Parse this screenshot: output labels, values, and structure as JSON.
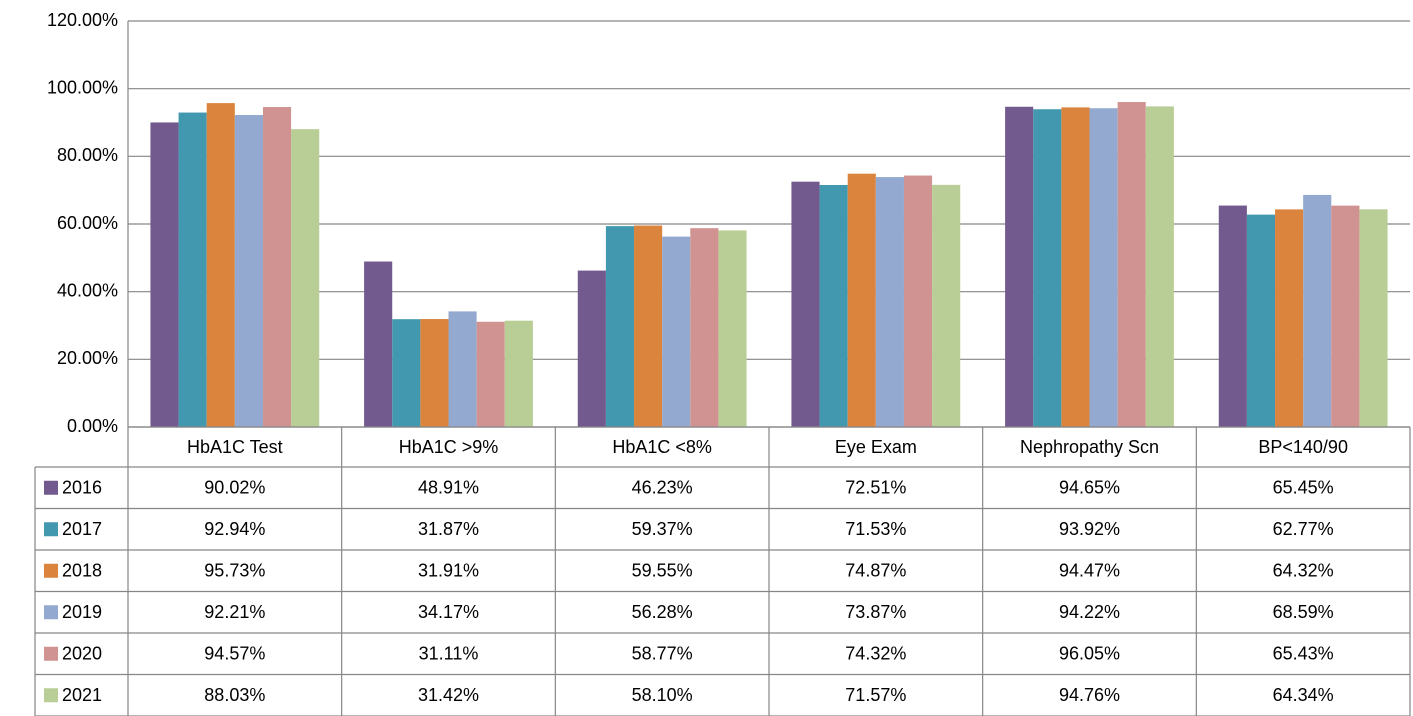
{
  "chart_data": {
    "type": "bar",
    "categories": [
      "HbA1C Test",
      "HbA1C >9%",
      "HbA1C <8%",
      "Eye Exam",
      "Nephropathy Scn",
      "BP<140/90"
    ],
    "series": [
      {
        "name": "2016",
        "color": "#735a8e",
        "values": [
          90.02,
          48.91,
          46.23,
          72.51,
          94.65,
          65.45
        ],
        "value_labels": [
          "90.02%",
          "48.91%",
          "46.23%",
          "72.51%",
          "94.65%",
          "65.45%"
        ]
      },
      {
        "name": "2017",
        "color": "#4198af",
        "values": [
          92.94,
          31.87,
          59.37,
          71.53,
          93.92,
          62.77
        ],
        "value_labels": [
          "92.94%",
          "31.87%",
          "59.37%",
          "71.53%",
          "93.92%",
          "62.77%"
        ]
      },
      {
        "name": "2018",
        "color": "#db843d",
        "values": [
          95.73,
          31.91,
          59.55,
          74.87,
          94.47,
          64.32
        ],
        "value_labels": [
          "95.73%",
          "31.91%",
          "59.55%",
          "74.87%",
          "94.47%",
          "64.32%"
        ]
      },
      {
        "name": "2019",
        "color": "#93a9cf",
        "values": [
          92.21,
          34.17,
          56.28,
          73.87,
          94.22,
          68.59
        ],
        "value_labels": [
          "92.21%",
          "34.17%",
          "56.28%",
          "73.87%",
          "94.22%",
          "68.59%"
        ]
      },
      {
        "name": "2020",
        "color": "#d19392",
        "values": [
          94.57,
          31.11,
          58.77,
          74.32,
          96.05,
          65.43
        ],
        "value_labels": [
          "94.57%",
          "31.11%",
          "58.77%",
          "74.32%",
          "96.05%",
          "65.43%"
        ]
      },
      {
        "name": "2021",
        "color": "#b9cd96",
        "values": [
          88.03,
          31.42,
          58.1,
          71.57,
          94.76,
          64.34
        ],
        "value_labels": [
          "88.03%",
          "31.42%",
          "58.10%",
          "71.57%",
          "94.76%",
          "64.34%"
        ]
      }
    ],
    "ylim": [
      0,
      120
    ],
    "yticks": [
      {
        "value": 0,
        "label": "0.00%"
      },
      {
        "value": 20,
        "label": "20.00%"
      },
      {
        "value": 40,
        "label": "40.00%"
      },
      {
        "value": 60,
        "label": "60.00%"
      },
      {
        "value": 80,
        "label": "80.00%"
      },
      {
        "value": 100,
        "label": "100.00%"
      },
      {
        "value": 120,
        "label": "120.00%"
      }
    ],
    "grid": true
  }
}
